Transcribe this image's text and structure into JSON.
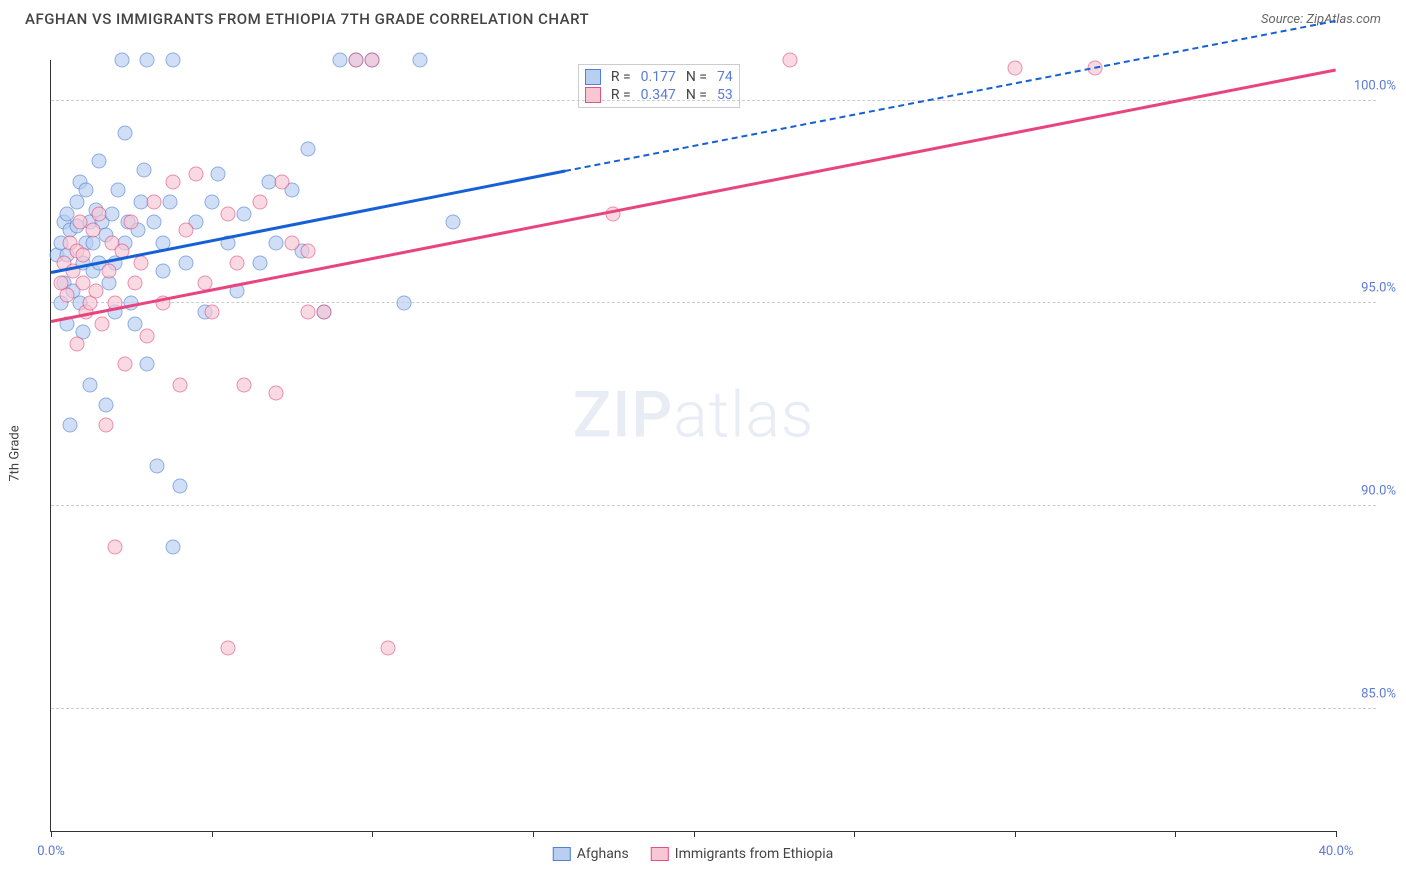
{
  "title": "AFGHAN VS IMMIGRANTS FROM ETHIOPIA 7TH GRADE CORRELATION CHART",
  "source": "Source: ZipAtlas.com",
  "ylabel": "7th Grade",
  "watermark_bold": "ZIP",
  "watermark_light": "atlas",
  "axes": {
    "xlim": [
      0,
      40
    ],
    "ylim": [
      82,
      101
    ],
    "xticks": [
      0,
      5,
      10,
      15,
      20,
      25,
      30,
      35,
      40
    ],
    "xtick_labels": {
      "0": "0.0%",
      "40": "40.0%"
    },
    "yticks": [
      85,
      90,
      95,
      100
    ],
    "ytick_labels": {
      "85": "85.0%",
      "90": "90.0%",
      "95": "95.0%",
      "100": "100.0%"
    }
  },
  "series": {
    "a": {
      "label": "Afghans",
      "fill": "#b8cff0",
      "stroke": "#4f81d6",
      "line_color": "#1560d6",
      "r_label": "R =",
      "r": "0.177",
      "n_label": "N =",
      "n": "74",
      "trend": {
        "x1": 0,
        "y1": 95.8,
        "x2": 16,
        "y2": 98.3,
        "dash_to_x": 40,
        "dash_to_y": 102
      },
      "points": [
        [
          0.2,
          96.2
        ],
        [
          0.3,
          95.0
        ],
        [
          0.3,
          96.5
        ],
        [
          0.4,
          97.0
        ],
        [
          0.4,
          95.5
        ],
        [
          0.5,
          96.2
        ],
        [
          0.5,
          97.2
        ],
        [
          0.5,
          94.5
        ],
        [
          0.6,
          96.8
        ],
        [
          0.6,
          92.0
        ],
        [
          0.7,
          95.3
        ],
        [
          0.8,
          96.9
        ],
        [
          0.8,
          97.5
        ],
        [
          0.9,
          95.0
        ],
        [
          0.9,
          98.0
        ],
        [
          1.0,
          96.0
        ],
        [
          1.0,
          94.3
        ],
        [
          1.1,
          96.5
        ],
        [
          1.1,
          97.8
        ],
        [
          1.2,
          97.0
        ],
        [
          1.2,
          93.0
        ],
        [
          1.3,
          95.8
        ],
        [
          1.3,
          96.5
        ],
        [
          1.4,
          97.3
        ],
        [
          1.5,
          96.0
        ],
        [
          1.5,
          98.5
        ],
        [
          1.6,
          97.0
        ],
        [
          1.7,
          96.7
        ],
        [
          1.7,
          92.5
        ],
        [
          1.8,
          95.5
        ],
        [
          1.9,
          97.2
        ],
        [
          2.0,
          96.0
        ],
        [
          2.0,
          94.8
        ],
        [
          2.1,
          97.8
        ],
        [
          2.2,
          101.0
        ],
        [
          2.3,
          96.5
        ],
        [
          2.3,
          99.2
        ],
        [
          2.4,
          97.0
        ],
        [
          2.5,
          95.0
        ],
        [
          2.6,
          94.5
        ],
        [
          2.7,
          96.8
        ],
        [
          2.8,
          97.5
        ],
        [
          2.9,
          98.3
        ],
        [
          3.0,
          93.5
        ],
        [
          3.0,
          101.0
        ],
        [
          3.2,
          97.0
        ],
        [
          3.3,
          91.0
        ],
        [
          3.5,
          95.8
        ],
        [
          3.5,
          96.5
        ],
        [
          3.7,
          97.5
        ],
        [
          3.8,
          89.0
        ],
        [
          3.8,
          101.0
        ],
        [
          4.0,
          90.5
        ],
        [
          4.2,
          96.0
        ],
        [
          4.5,
          97.0
        ],
        [
          4.8,
          94.8
        ],
        [
          5.0,
          97.5
        ],
        [
          5.2,
          98.2
        ],
        [
          5.5,
          96.5
        ],
        [
          5.8,
          95.3
        ],
        [
          6.0,
          97.2
        ],
        [
          6.5,
          96.0
        ],
        [
          6.8,
          98.0
        ],
        [
          7.0,
          96.5
        ],
        [
          7.5,
          97.8
        ],
        [
          7.8,
          96.3
        ],
        [
          8.0,
          98.8
        ],
        [
          8.5,
          94.8
        ],
        [
          9.0,
          101.0
        ],
        [
          9.5,
          101.0
        ],
        [
          10.0,
          101.0
        ],
        [
          11.0,
          95.0
        ],
        [
          11.5,
          101.0
        ],
        [
          12.5,
          97.0
        ]
      ]
    },
    "b": {
      "label": "Immigrants from Ethiopia",
      "fill": "#f7c7d4",
      "stroke": "#e35184",
      "line_color": "#e8447e",
      "r_label": "R =",
      "r": "0.347",
      "n_label": "N =",
      "n": "53",
      "trend": {
        "x1": 0,
        "y1": 94.6,
        "x2": 40,
        "y2": 100.8
      },
      "points": [
        [
          0.3,
          95.5
        ],
        [
          0.4,
          96.0
        ],
        [
          0.5,
          95.2
        ],
        [
          0.6,
          96.5
        ],
        [
          0.7,
          95.8
        ],
        [
          0.8,
          96.3
        ],
        [
          0.8,
          94.0
        ],
        [
          0.9,
          97.0
        ],
        [
          1.0,
          95.5
        ],
        [
          1.0,
          96.2
        ],
        [
          1.1,
          94.8
        ],
        [
          1.2,
          95.0
        ],
        [
          1.3,
          96.8
        ],
        [
          1.4,
          95.3
        ],
        [
          1.5,
          97.2
        ],
        [
          1.6,
          94.5
        ],
        [
          1.7,
          92.0
        ],
        [
          1.8,
          95.8
        ],
        [
          1.9,
          96.5
        ],
        [
          2.0,
          95.0
        ],
        [
          2.0,
          89.0
        ],
        [
          2.2,
          96.3
        ],
        [
          2.3,
          93.5
        ],
        [
          2.5,
          97.0
        ],
        [
          2.6,
          95.5
        ],
        [
          2.8,
          96.0
        ],
        [
          3.0,
          94.2
        ],
        [
          3.2,
          97.5
        ],
        [
          3.5,
          95.0
        ],
        [
          3.8,
          98.0
        ],
        [
          4.0,
          93.0
        ],
        [
          4.2,
          96.8
        ],
        [
          4.5,
          98.2
        ],
        [
          4.8,
          95.5
        ],
        [
          5.0,
          94.8
        ],
        [
          5.5,
          97.2
        ],
        [
          5.5,
          86.5
        ],
        [
          5.8,
          96.0
        ],
        [
          6.0,
          93.0
        ],
        [
          6.5,
          97.5
        ],
        [
          7.0,
          92.8
        ],
        [
          7.2,
          98.0
        ],
        [
          7.5,
          96.5
        ],
        [
          8.0,
          94.8
        ],
        [
          8.0,
          96.3
        ],
        [
          8.5,
          94.8
        ],
        [
          9.5,
          101.0
        ],
        [
          10.0,
          101.0
        ],
        [
          10.5,
          86.5
        ],
        [
          17.5,
          97.2
        ],
        [
          23.0,
          101.0
        ],
        [
          30.0,
          100.8
        ],
        [
          32.5,
          100.8
        ]
      ]
    }
  }
}
